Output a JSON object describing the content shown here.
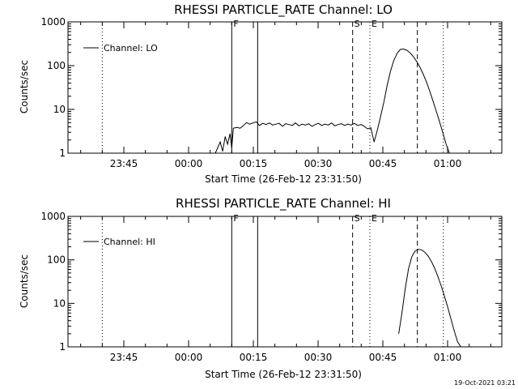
{
  "chart_data": [
    {
      "type": "line",
      "title": "RHESSI PARTICLE_RATE Channel: LO",
      "xlabel": "Start Time (26-Feb-12 23:31:50)",
      "ylabel": "Counts/sec",
      "yscale": "log",
      "ylim": [
        1,
        1000
      ],
      "yticks": [
        1,
        10,
        100,
        1000
      ],
      "ytick_labels": [
        "1",
        "10",
        "100",
        "1000"
      ],
      "xlim": [
        0,
        2650
      ],
      "xtick_minutes": [
        795,
        810,
        825,
        840,
        855,
        870
      ],
      "xtick_labels": [
        "23:45",
        "00:00",
        "00:15",
        "00:30",
        "00:45",
        "01:00"
      ],
      "legend": {
        "entry": "Channel: LO",
        "position": "top-left"
      },
      "series": [
        {
          "name": "Channel: LO",
          "x": [
            900,
            930,
            945,
            960,
            975,
            990,
            1000,
            1010,
            1020,
            1035,
            1050,
            1070,
            1090,
            1110,
            1130,
            1150,
            1170,
            1190,
            1210,
            1230,
            1250,
            1270,
            1290,
            1310,
            1330,
            1350,
            1370,
            1390,
            1410,
            1430,
            1450,
            1470,
            1490,
            1510,
            1530,
            1550,
            1570,
            1590,
            1610,
            1630,
            1650,
            1670,
            1690,
            1710,
            1730,
            1750,
            1770,
            1790,
            1810,
            1830,
            1850,
            1870,
            1890,
            1910,
            1930,
            1950,
            1970,
            1990,
            2010,
            2030,
            2050,
            2070,
            2090,
            2110,
            2130,
            2150,
            2170,
            2190,
            2210,
            2230,
            2250,
            2270,
            2290,
            2310,
            2330,
            2350,
            2370,
            2390,
            2410,
            2430,
            2450,
            2470,
            2490,
            2510,
            2530,
            2550
          ],
          "y": [
            1.0,
            1.8,
            1.1,
            2.4,
            1.6,
            2.8,
            1.3,
            3.7,
            3.8,
            3.9,
            3.7,
            4.2,
            5.0,
            4.6,
            4.9,
            5.2,
            4.3,
            4.8,
            4.5,
            4.9,
            4.4,
            4.6,
            4.8,
            4.1,
            4.7,
            4.5,
            4.3,
            4.9,
            4.2,
            4.6,
            4.4,
            4.7,
            4.1,
            4.5,
            4.8,
            4.3,
            4.6,
            4.4,
            4.9,
            4.2,
            4.5,
            4.7,
            4.3,
            4.6,
            4.4,
            4.8,
            4.3,
            4.5,
            4.1,
            3.6,
            3.8,
            1.8,
            3.4,
            7.0,
            15.0,
            36.0,
            75.0,
            130.0,
            190.0,
            235.0,
            240.0,
            225.0,
            195.0,
            160.0,
            125.0,
            92.0,
            64.0,
            42.0,
            26.0,
            15.5,
            9.0,
            5.2,
            2.9,
            1.6,
            1.0,
            1.0,
            1.0,
            1.0,
            1.0,
            1.0,
            1.0,
            1.0,
            1.0,
            1.0,
            1.0,
            1.0
          ]
        }
      ],
      "vertical_lines": [
        {
          "label": "",
          "minute": 790,
          "style": "dotted"
        },
        {
          "label": "F",
          "minute": 820,
          "style": "solid"
        },
        {
          "label": "",
          "minute": 826,
          "style": "solid"
        },
        {
          "label": "S",
          "minute": 848,
          "style": "dashed"
        },
        {
          "label": "E",
          "minute": 852,
          "style": "dotted"
        },
        {
          "label": "",
          "minute": 863,
          "style": "dashed"
        },
        {
          "label": "",
          "minute": 869,
          "style": "dotted"
        }
      ]
    },
    {
      "type": "line",
      "title": "RHESSI PARTICLE_RATE Channel: HI",
      "xlabel": "Start Time (26-Feb-12 23:31:50)",
      "ylabel": "Counts/sec",
      "yscale": "log",
      "ylim": [
        1,
        1000
      ],
      "yticks": [
        1,
        10,
        100,
        1000
      ],
      "ytick_labels": [
        "1",
        "10",
        "100",
        "1000"
      ],
      "xtick_labels": [
        "23:45",
        "00:00",
        "00:15",
        "00:30",
        "00:45",
        "01:00"
      ],
      "legend": {
        "entry": "Channel: HI",
        "position": "top-left"
      },
      "series": [
        {
          "name": "Channel: HI",
          "x": [
            2020,
            2040,
            2060,
            2080,
            2100,
            2120,
            2140,
            2160,
            2180,
            2200,
            2220,
            2240,
            2260,
            2280,
            2300,
            2320,
            2340,
            2360,
            2380,
            2400
          ],
          "y": [
            2.0,
            6.0,
            22.0,
            62.0,
            118.0,
            158.0,
            175.0,
            170.0,
            150.0,
            122.0,
            92.0,
            64.0,
            41.0,
            25.0,
            14.5,
            8.0,
            4.3,
            2.3,
            1.3,
            1.0
          ]
        }
      ],
      "vertical_lines": [
        {
          "label": "",
          "minute": 790,
          "style": "dotted"
        },
        {
          "label": "F",
          "minute": 820,
          "style": "solid"
        },
        {
          "label": "",
          "minute": 826,
          "style": "solid"
        },
        {
          "label": "S",
          "minute": 848,
          "style": "dashed"
        },
        {
          "label": "E",
          "minute": 852,
          "style": "dotted"
        },
        {
          "label": "",
          "minute": 863,
          "style": "dashed"
        },
        {
          "label": "",
          "minute": 869,
          "style": "dotted"
        }
      ]
    }
  ],
  "footer": {
    "timestamp": "19-Oct-2021 03:21"
  }
}
